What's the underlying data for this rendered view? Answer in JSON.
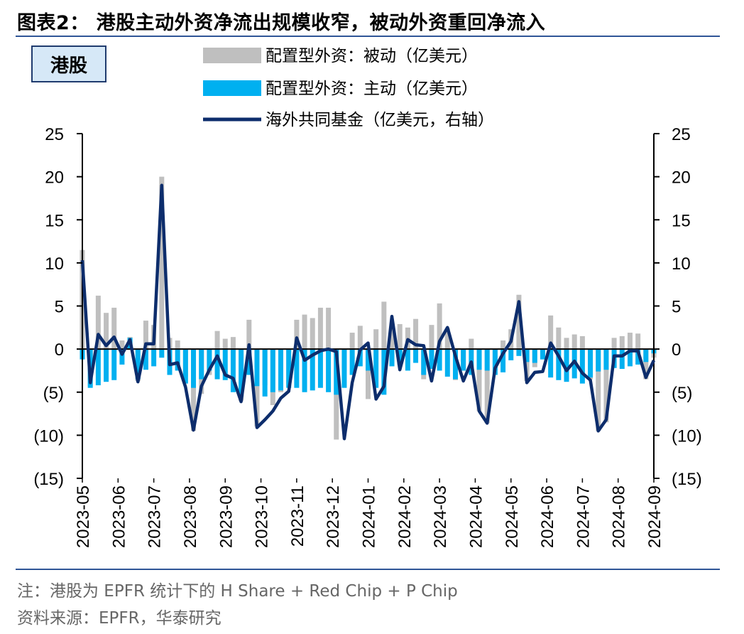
{
  "title": "图表2：  港股主动外资净流出规模收窄，被动外资重回净流入",
  "badge": "港股",
  "note": "注：港股为 EPFR 统计下的 H Share + Red Chip + P Chip",
  "source": "资料来源：EPFR，华泰研究",
  "colors": {
    "passive": "#bfbfbf",
    "active": "#00b0f0",
    "line": "#0d2d6c",
    "rule": "#2f5597"
  },
  "chart_data": {
    "type": "bar+line",
    "title": "",
    "y_left": {
      "ylim": [
        -15,
        25
      ],
      "ticks": [
        25,
        20,
        15,
        10,
        5,
        0,
        -5,
        -10,
        -15
      ],
      "tick_labels": [
        "25",
        "20",
        "15",
        "10",
        "5",
        "0",
        "(5)",
        "(10)",
        "(15)"
      ]
    },
    "y_right": {
      "ylim": [
        -15,
        25
      ],
      "ticks": [
        25,
        20,
        15,
        10,
        5,
        0,
        -5,
        -10,
        -15
      ],
      "tick_labels": [
        "25",
        "20",
        "15",
        "10",
        "5",
        "0",
        "(5)",
        "(10)",
        "(15)"
      ]
    },
    "x_labels": [
      "2023-05",
      "2023-06",
      "2023-07",
      "2023-08",
      "2023-09",
      "2023-10",
      "2023-11",
      "2023-12",
      "2024-01",
      "2024-02",
      "2024-03",
      "2024-04",
      "2024-05",
      "2024-06",
      "2024-07",
      "2024-08",
      "2024-09"
    ],
    "legend": [
      {
        "name": "配置型外资：被动（亿美元）",
        "kind": "bar",
        "color": "#bfbfbf"
      },
      {
        "name": "配置型外资：主动（亿美元）",
        "kind": "bar",
        "color": "#00b0f0"
      },
      {
        "name": "海外共同基金（亿美元，右轴）",
        "kind": "line",
        "color": "#0d2d6c"
      }
    ],
    "series": [
      {
        "name": "配置型外资：被动（亿美元）",
        "axis": "left",
        "values": [
          11.5,
          -4.3,
          6.2,
          4.2,
          4.8,
          1.0,
          1.4,
          -3.7,
          3.3,
          2.8,
          20,
          1.3,
          1.0,
          -3.2,
          -9.5,
          -5.2,
          -3,
          2.1,
          1.2,
          1.4,
          -6,
          3.4,
          -9,
          -4.2,
          -6.5,
          -5,
          -4,
          3.4,
          4.0,
          3.6,
          4.8,
          4.8,
          -10.5,
          -2.5,
          1.9,
          2.7,
          -5.8,
          2.3,
          5.5,
          2.9,
          2.9,
          2.5,
          3.5,
          -3.5,
          2.8,
          5.3,
          2.4,
          -3.6,
          -2.5,
          1.2,
          -7.2,
          -8.6,
          -2.5,
          1.0,
          2.3,
          6.3,
          -3.7,
          -2.1,
          -1.0,
          3.9,
          2.5,
          1.3,
          1.7,
          1.5,
          -3.5,
          -9.5,
          -8.5,
          1.3,
          1.5,
          1.9,
          1.8,
          -3.5,
          -1.0
        ]
      },
      {
        "name": "配置型外资：主动（亿美元）",
        "axis": "left",
        "values": [
          -1.2,
          -4.5,
          -4.2,
          -3.8,
          -3.6,
          -1.8,
          1.3,
          -3.5,
          -2.4,
          -2.0,
          -1.0,
          -3.0,
          -2.5,
          -4.0,
          -4.5,
          -3.5,
          -2.5,
          -3.5,
          -3.6,
          -5.0,
          -5.5,
          -3.0,
          -4.3,
          -5.5,
          -5.0,
          -4.8,
          -4.5,
          -4.5,
          -5.0,
          -4.8,
          -4.5,
          -5.0,
          -5.3,
          -4.5,
          -3.0,
          -2.0,
          -2.5,
          -4.5,
          -5.3,
          -2.0,
          -1.8,
          -2.5,
          -1.6,
          -3.0,
          -2.3,
          -2.5,
          -3.2,
          -3.5,
          -2.5,
          -3.0,
          -2.4,
          -2.5,
          -3.0,
          -2.7,
          -1.3,
          -0.8,
          -1.5,
          -1.6,
          -1.2,
          -3.3,
          -3.6,
          -3.8,
          -3.4,
          -4.0,
          -3.3,
          -2.6,
          -2.4,
          -2.2,
          -2.3,
          -2.0,
          -1.8,
          -1.5,
          -0.5
        ]
      },
      {
        "name": "海外共同基金（亿美元，右轴）",
        "axis": "right",
        "kind": "line",
        "values": [
          10.3,
          -3.9,
          1.7,
          0.4,
          1.4,
          -0.6,
          1.1,
          -3.8,
          0.6,
          0.6,
          19.0,
          -1.8,
          -1.6,
          -4.4,
          -9.4,
          -4.3,
          -2.4,
          -0.8,
          -3.0,
          -3.4,
          -6.1,
          0.5,
          -9.1,
          -8.2,
          -7.2,
          -5.7,
          -4.9,
          1.3,
          -1.3,
          -0.7,
          -0.2,
          0.0,
          -0.3,
          -10.4,
          -3.9,
          -0.1,
          0.7,
          -5.8,
          -4.3,
          3.8,
          -2.4,
          1.1,
          0.5,
          0.4,
          -3.7,
          0.9,
          2.5,
          -0.8,
          -3.7,
          -1.5,
          -7.2,
          -8.6,
          -2.2,
          -0.5,
          0.9,
          5.5,
          -3.9,
          -2.7,
          -2.6,
          0.7,
          -0.8,
          -2.5,
          -1.4,
          -2.8,
          -3.6,
          -9.5,
          -8.2,
          -0.8,
          -0.8,
          -0.2,
          -0.2,
          -3.3,
          -1.3
        ]
      }
    ]
  }
}
